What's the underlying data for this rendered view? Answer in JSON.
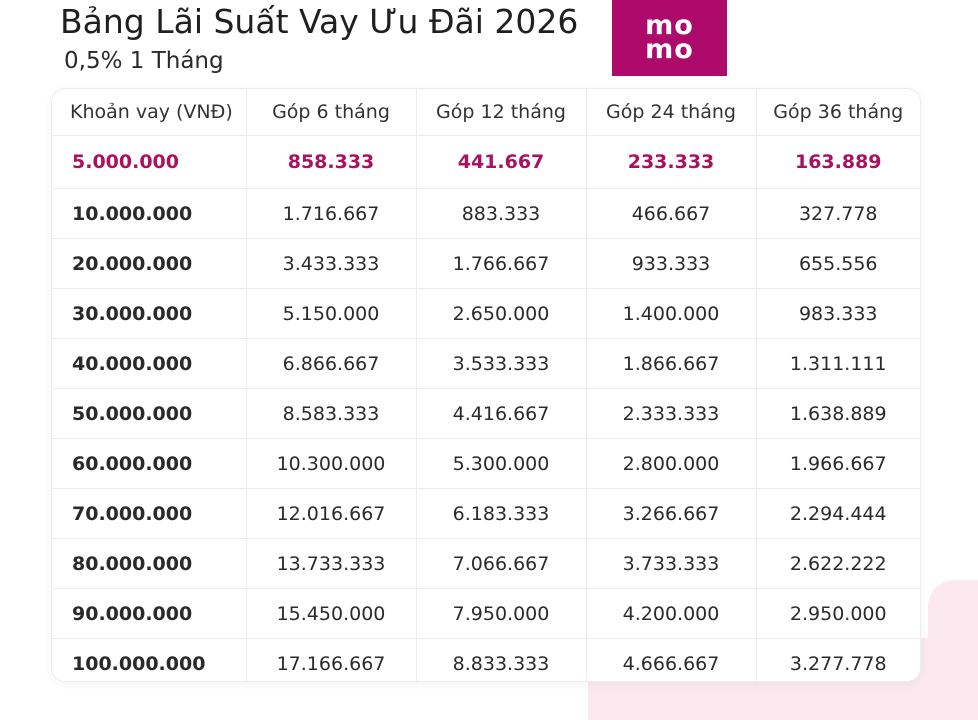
{
  "header": {
    "title": "Bảng Lãi Suất Vay Ưu Đãi 2026",
    "subtitle": "0,5% 1 Tháng"
  },
  "logo": {
    "line1": "mo",
    "line2": "mo",
    "color": "#ad0a6c"
  },
  "accent_color": "#a8125f",
  "table": {
    "headers": [
      "Khoản vay (VNĐ)",
      "Góp 6 tháng",
      "Góp 12 tháng",
      "Góp 24 tháng",
      "Góp 36 tháng"
    ],
    "rows": [
      [
        "5.000.000",
        "858.333",
        "441.667",
        "233.333",
        "163.889"
      ],
      [
        "10.000.000",
        "1.716.667",
        "883.333",
        "466.667",
        "327.778"
      ],
      [
        "20.000.000",
        "3.433.333",
        "1.766.667",
        "933.333",
        "655.556"
      ],
      [
        "30.000.000",
        "5.150.000",
        "2.650.000",
        "1.400.000",
        "983.333"
      ],
      [
        "40.000.000",
        "6.866.667",
        "3.533.333",
        "1.866.667",
        "1.311.111"
      ],
      [
        "50.000.000",
        "8.583.333",
        "4.416.667",
        "2.333.333",
        "1.638.889"
      ],
      [
        "60.000.000",
        "10.300.000",
        "5.300.000",
        "2.800.000",
        "1.966.667"
      ],
      [
        "70.000.000",
        "12.016.667",
        "6.183.333",
        "3.266.667",
        "2.294.444"
      ],
      [
        "80.000.000",
        "13.733.333",
        "7.066.667",
        "3.733.333",
        "2.622.222"
      ],
      [
        "90.000.000",
        "15.450.000",
        "7.950.000",
        "4.200.000",
        "2.950.000"
      ],
      [
        "100.000.000",
        "17.166.667",
        "8.833.333",
        "4.666.667",
        "3.277.778"
      ]
    ]
  }
}
